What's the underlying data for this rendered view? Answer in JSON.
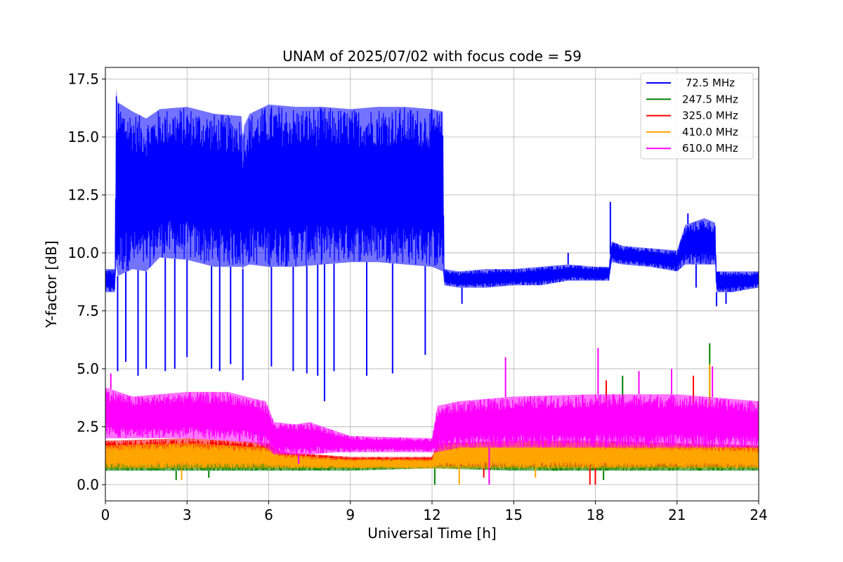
{
  "chart_data": {
    "type": "line",
    "title": "UNAM of 2025/07/02 with focus code = 59",
    "xlabel": "Universal Time [h]",
    "ylabel": "Y-factor [dB]",
    "xlim": [
      0,
      24
    ],
    "ylim": [
      -0.7,
      18.0
    ],
    "grid": true,
    "legend_position": "top-right",
    "x_ticks": [
      0,
      3,
      6,
      9,
      12,
      15,
      18,
      21,
      24
    ],
    "x_tick_labels": [
      "0",
      "3",
      "6",
      "9",
      "12",
      "15",
      "18",
      "21",
      "24"
    ],
    "y_ticks": [
      0.0,
      2.5,
      5.0,
      7.5,
      10.0,
      12.5,
      15.0,
      17.5
    ],
    "y_tick_labels": [
      "0.0",
      "2.5",
      "5.0",
      "7.5",
      "10.0",
      "12.5",
      "15.0",
      "17.5"
    ],
    "series": [
      {
        "name": " 72.5 MHz",
        "color": "#0000ff",
        "style": "band",
        "x": [
          0.0,
          0.35,
          0.4,
          0.45,
          1.0,
          1.5,
          2.0,
          3.0,
          4.0,
          5.0,
          5.05,
          5.1,
          5.3,
          6.0,
          7.0,
          8.0,
          9.0,
          10.0,
          11.0,
          12.0,
          12.4,
          12.45,
          13.0,
          14.0,
          15.0,
          16.0,
          17.0,
          18.0,
          18.5,
          18.6,
          19.0,
          20.0,
          21.0,
          21.3,
          22.0,
          22.4,
          22.45,
          23.0,
          24.0
        ],
        "upper": [
          9.3,
          9.3,
          17.1,
          16.5,
          16.1,
          15.8,
          16.2,
          16.3,
          16.0,
          15.9,
          14.9,
          15.5,
          16.0,
          16.4,
          16.3,
          16.3,
          16.2,
          16.3,
          16.3,
          16.2,
          16.1,
          9.3,
          9.2,
          9.3,
          9.3,
          9.4,
          9.5,
          9.4,
          9.4,
          10.5,
          10.3,
          10.2,
          10.1,
          11.2,
          11.5,
          11.3,
          9.2,
          9.2,
          9.2
        ],
        "lower": [
          8.3,
          8.3,
          9.5,
          9.0,
          9.3,
          9.2,
          9.8,
          9.7,
          9.4,
          9.4,
          9.3,
          9.4,
          9.5,
          9.4,
          9.4,
          9.5,
          9.6,
          9.6,
          9.5,
          9.4,
          9.2,
          8.6,
          8.5,
          8.5,
          8.6,
          8.6,
          8.8,
          8.8,
          8.8,
          9.6,
          9.5,
          9.4,
          9.2,
          9.5,
          9.5,
          9.5,
          8.3,
          8.3,
          8.5
        ],
        "dips": [
          [
            0.45,
            4.9
          ],
          [
            0.75,
            5.3
          ],
          [
            1.2,
            4.7
          ],
          [
            1.5,
            5.0
          ],
          [
            2.2,
            4.9
          ],
          [
            2.55,
            5.0
          ],
          [
            3.0,
            5.5
          ],
          [
            3.9,
            5.0
          ],
          [
            4.2,
            4.9
          ],
          [
            4.6,
            5.2
          ],
          [
            5.05,
            4.5
          ],
          [
            6.1,
            5.1
          ],
          [
            6.9,
            4.9
          ],
          [
            7.4,
            4.8
          ],
          [
            7.8,
            4.7
          ],
          [
            8.05,
            3.6
          ],
          [
            8.4,
            4.9
          ],
          [
            9.6,
            4.7
          ],
          [
            10.55,
            4.8
          ],
          [
            11.75,
            5.6
          ],
          [
            13.1,
            7.8
          ],
          [
            21.7,
            8.5
          ],
          [
            22.45,
            7.7
          ],
          [
            22.8,
            7.8
          ]
        ],
        "spikes": [
          [
            17.0,
            10.0
          ],
          [
            18.55,
            12.2
          ],
          [
            21.4,
            11.7
          ]
        ]
      },
      {
        "name": "247.5 MHz",
        "color": "#008000",
        "style": "band",
        "x": [
          0.0,
          3.0,
          6.0,
          9.0,
          12.0,
          15.0,
          18.0,
          21.0,
          24.0
        ],
        "upper": [
          1.3,
          1.3,
          1.2,
          1.1,
          1.1,
          1.3,
          1.3,
          1.3,
          1.3
        ],
        "lower": [
          0.6,
          0.6,
          0.6,
          0.6,
          0.7,
          0.6,
          0.6,
          0.6,
          0.6
        ],
        "dips": [
          [
            2.6,
            0.2
          ],
          [
            3.8,
            0.3
          ],
          [
            12.1,
            0.0
          ],
          [
            18.3,
            0.2
          ]
        ],
        "spikes": [
          [
            19.0,
            4.7
          ],
          [
            22.2,
            6.1
          ]
        ]
      },
      {
        "name": "325.0 MHz",
        "color": "#ff0000",
        "style": "band",
        "x": [
          0.0,
          3.0,
          6.0,
          6.5,
          9.0,
          12.0,
          12.2,
          15.0,
          18.0,
          21.0,
          24.0
        ],
        "upper": [
          1.9,
          2.0,
          1.8,
          1.4,
          1.2,
          1.2,
          1.8,
          1.9,
          1.9,
          1.8,
          1.7
        ],
        "lower": [
          0.9,
          0.9,
          0.9,
          0.8,
          0.8,
          0.8,
          0.8,
          0.8,
          0.8,
          0.8,
          0.8
        ],
        "dips": [
          [
            17.8,
            0.0
          ],
          [
            18.0,
            0.0
          ],
          [
            13.9,
            0.3
          ]
        ],
        "spikes": [
          [
            18.4,
            4.5
          ],
          [
            21.6,
            4.7
          ]
        ]
      },
      {
        "name": "410.0 MHz",
        "color": "#ffa500",
        "style": "band",
        "x": [
          0.0,
          3.0,
          6.0,
          6.5,
          9.0,
          12.0,
          12.2,
          15.0,
          18.0,
          21.0,
          24.0
        ],
        "upper": [
          1.7,
          1.8,
          1.6,
          1.3,
          1.1,
          1.1,
          1.7,
          1.9,
          1.8,
          1.7,
          1.6
        ],
        "lower": [
          0.7,
          0.7,
          0.7,
          0.7,
          0.7,
          0.7,
          0.7,
          0.7,
          0.7,
          0.7,
          0.7
        ],
        "dips": [
          [
            2.8,
            0.2
          ],
          [
            13.0,
            0.0
          ],
          [
            15.8,
            0.3
          ]
        ],
        "spikes": [
          [
            14.3,
            2.5
          ],
          [
            22.2,
            5.2
          ]
        ]
      },
      {
        "name": "610.0 MHz",
        "color": "#ff00ff",
        "style": "band",
        "x": [
          0.0,
          1.0,
          3.0,
          4.5,
          5.5,
          5.9,
          6.2,
          7.0,
          7.5,
          8.5,
          9.0,
          12.0,
          12.2,
          13.0,
          15.0,
          18.0,
          21.0,
          24.0
        ],
        "upper": [
          4.2,
          3.8,
          4.0,
          4.0,
          3.7,
          3.6,
          2.7,
          2.6,
          2.7,
          2.3,
          2.1,
          2.0,
          3.4,
          3.6,
          3.8,
          3.9,
          3.9,
          3.6
        ],
        "lower": [
          2.0,
          2.0,
          2.0,
          1.9,
          1.8,
          1.6,
          1.3,
          1.3,
          1.3,
          1.4,
          1.4,
          1.4,
          1.4,
          1.6,
          1.6,
          1.6,
          1.6,
          1.6
        ],
        "dips": [
          [
            14.1,
            0.0
          ],
          [
            7.1,
            0.9
          ]
        ],
        "spikes": [
          [
            0.2,
            4.8
          ],
          [
            14.7,
            5.5
          ],
          [
            18.1,
            5.9
          ],
          [
            19.6,
            4.9
          ],
          [
            20.8,
            5.0
          ],
          [
            22.3,
            5.1
          ]
        ]
      }
    ]
  }
}
